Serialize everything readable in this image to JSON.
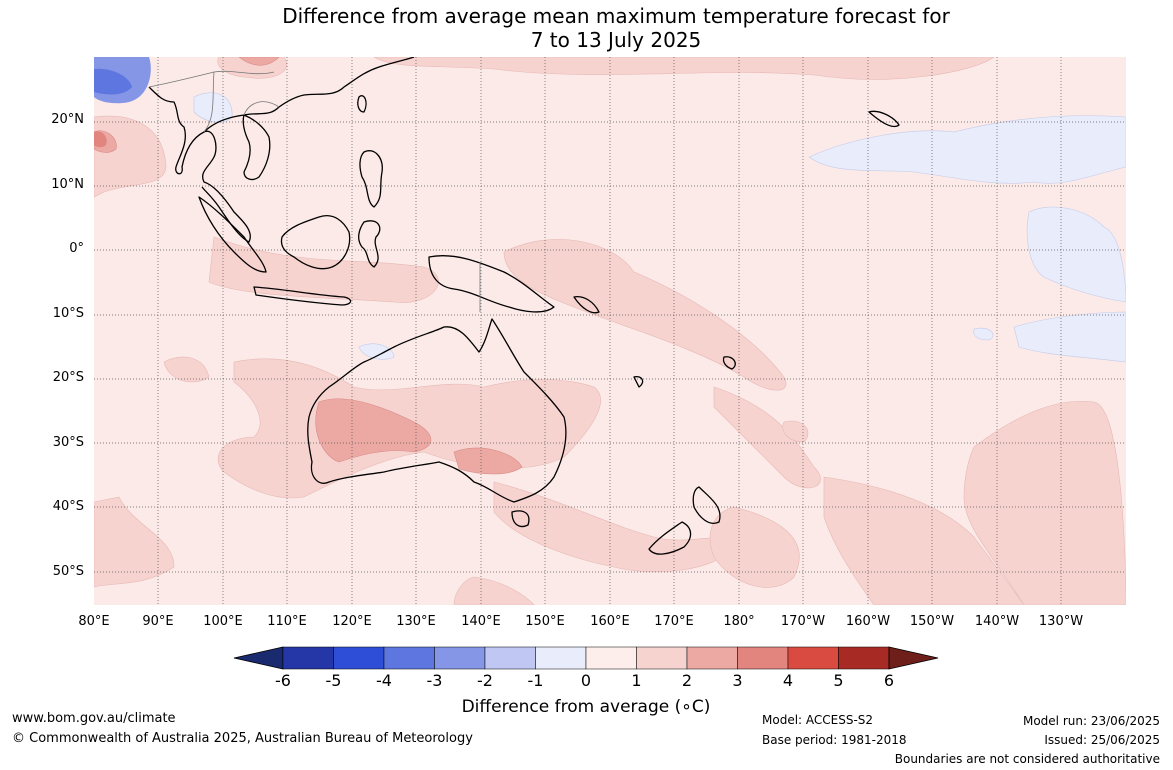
{
  "title": {
    "line1": "Difference from average mean maximum temperature forecast for",
    "line2": "7 to 13 July 2025"
  },
  "map": {
    "lat_labels": [
      "20°N",
      "10°N",
      "0°",
      "10°S",
      "20°S",
      "30°S",
      "40°S",
      "50°S"
    ],
    "lon_labels": [
      "80°E",
      "90°E",
      "100°E",
      "110°E",
      "120°E",
      "130°E",
      "140°E",
      "150°E",
      "160°E",
      "170°E",
      "180°",
      "170°W",
      "160°W",
      "150°W",
      "140°W",
      "130°W"
    ]
  },
  "colorbar": {
    "title": "Difference from average (∘C)",
    "ticks": [
      "-6",
      "-5",
      "-4",
      "-3",
      "-2",
      "-1",
      "0",
      "1",
      "2",
      "3",
      "4",
      "5",
      "6"
    ],
    "colors": {
      "low_extend": "#1a2a6e",
      "bins": [
        "#2536a6",
        "#2f4ed8",
        "#5d76e0",
        "#8596e6",
        "#bfc7f2",
        "#e8ecfb",
        "#fdeeeb",
        "#f7d3d0",
        "#eca9a4",
        "#e2857f",
        "#d94a40",
        "#a82a24"
      ],
      "high_extend": "#6e1f1a"
    }
  },
  "footer": {
    "website": "www.bom.gov.au/climate",
    "copyright": "© Commonwealth of Australia 2025, Australian Bureau of Meteorology",
    "model": "Model: ACCESS-S2",
    "base_period": "Base period: 1981-2018",
    "model_run": "Model run: 23/06/2025",
    "issued": "Issued: 25/06/2025",
    "disclaimer": "Boundaries are not considered authoritative"
  }
}
